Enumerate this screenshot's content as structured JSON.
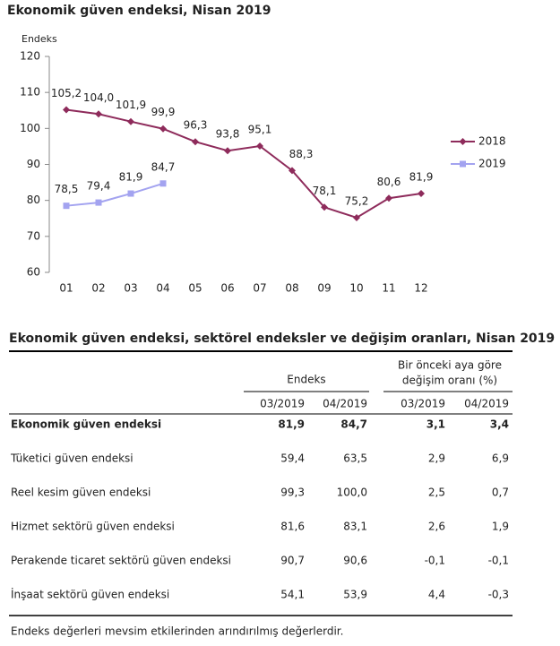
{
  "chart_data": {
    "type": "line",
    "title": "Ekonomik güven endeksi, Nisan 2019",
    "y_label": "Endeks",
    "categories": [
      "01",
      "02",
      "03",
      "04",
      "05",
      "06",
      "07",
      "08",
      "09",
      "10",
      "11",
      "12"
    ],
    "series": [
      {
        "name": "2018",
        "color": "#8e2b5b",
        "marker": "diamond",
        "values": [
          105.2,
          104.0,
          101.9,
          99.9,
          96.3,
          93.8,
          95.1,
          88.3,
          78.1,
          75.2,
          80.6,
          81.9
        ],
        "value_labels": [
          "105,2",
          "104,0",
          "101,9",
          "99,9",
          "96,3",
          "93,8",
          "95,1",
          "88,3",
          "78,1",
          "75,2",
          "80,6",
          "81,9"
        ]
      },
      {
        "name": "2019",
        "color": "#a3a3f0",
        "marker": "square",
        "values": [
          78.5,
          79.4,
          81.9,
          84.7,
          null,
          null,
          null,
          null,
          null,
          null,
          null,
          null
        ],
        "value_labels": [
          "78,5",
          "79,4",
          "81,9",
          "84,7",
          null,
          null,
          null,
          null,
          null,
          null,
          null,
          null
        ]
      }
    ],
    "ylim": [
      60,
      120
    ],
    "yticks": [
      60,
      70,
      80,
      90,
      100,
      110,
      120
    ],
    "grid": false,
    "legend": "right"
  },
  "table": {
    "title": "Ekonomik güven endeksi, sektörel endeksler ve değişim oranları, Nisan 2019",
    "group_headers": [
      [
        "Endeks"
      ],
      [
        "Bir önceki aya göre",
        "değişim oranı (%)"
      ]
    ],
    "columns": [
      "03/2019",
      "04/2019",
      "03/2019",
      "04/2019"
    ],
    "rows": [
      [
        "Ekonomik güven endeksi",
        "81,9",
        "84,7",
        "3,1",
        "3,4"
      ],
      [
        "Tüketici güven endeksi",
        "59,4",
        "63,5",
        "2,9",
        "6,9"
      ],
      [
        "Reel kesim güven endeksi",
        "99,3",
        "100,0",
        "2,5",
        "0,7"
      ],
      [
        "Hizmet sektörü güven endeksi",
        "81,6",
        "83,1",
        "2,6",
        "1,9"
      ],
      [
        "Perakende ticaret sektörü güven endeksi",
        "90,7",
        "90,6",
        "-0,1",
        "-0,1"
      ],
      [
        "İnşaat sektörü güven endeksi",
        "54,1",
        "53,9",
        "4,4",
        "-0,3"
      ]
    ],
    "note": "Endeks değerleri mevsim etkilerinden arındırılmış değerlerdir."
  }
}
